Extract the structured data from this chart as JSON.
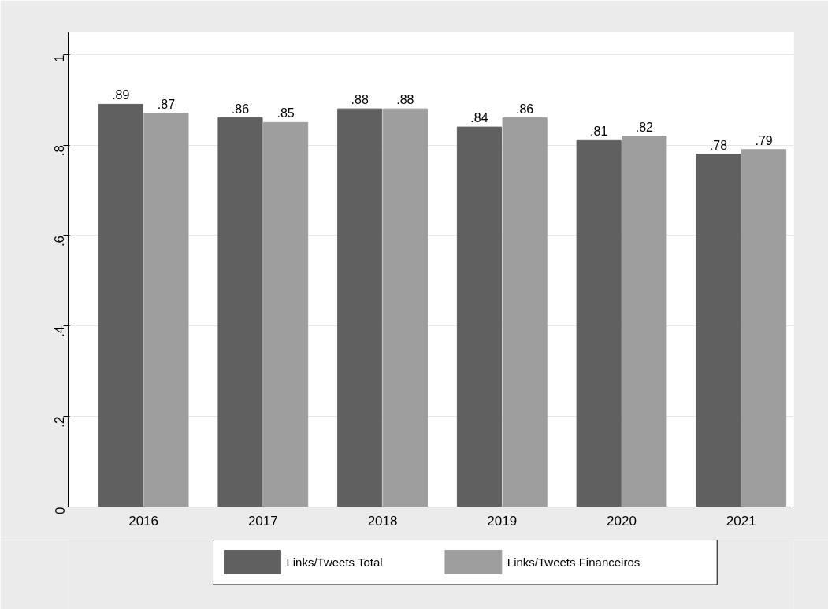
{
  "chart_data": {
    "type": "bar",
    "categories": [
      "2016",
      "2017",
      "2018",
      "2019",
      "2020",
      "2021"
    ],
    "series": [
      {
        "name": "Links/Tweets Total",
        "color": "#606060",
        "values": [
          0.89,
          0.86,
          0.88,
          0.84,
          0.81,
          0.78
        ],
        "value_labels": [
          ".89",
          ".86",
          ".88",
          ".84",
          ".81",
          ".78"
        ]
      },
      {
        "name": "Links/Tweets Financeiros",
        "color": "#9e9e9e",
        "values": [
          0.87,
          0.85,
          0.88,
          0.86,
          0.82,
          0.79
        ],
        "value_labels": [
          ".87",
          ".85",
          ".88",
          ".86",
          ".82",
          ".79"
        ]
      }
    ],
    "ylim": [
      0,
      1.05
    ],
    "yticks": [
      0,
      {
        "value": 0.2,
        "label": ".2"
      },
      {
        "value": 0.4,
        "label": ".4"
      },
      {
        "value": 0.6,
        "label": ".6"
      },
      {
        "value": 0.8,
        "label": ".8"
      },
      1
    ],
    "grid": "y",
    "legend": "bottom"
  }
}
